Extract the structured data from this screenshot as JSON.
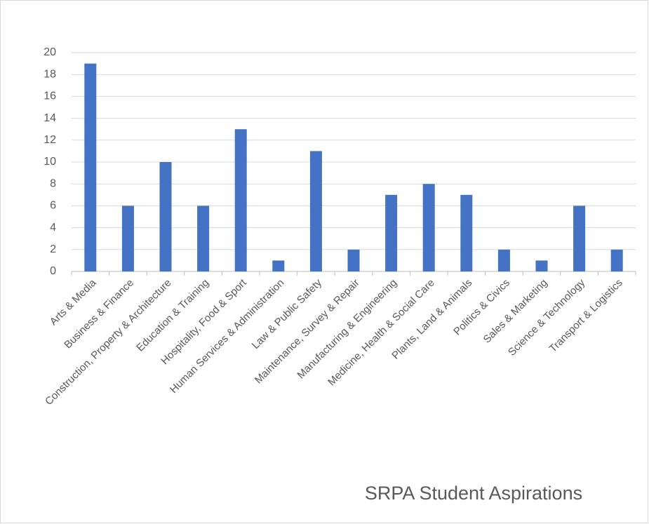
{
  "chart_data": {
    "type": "bar",
    "title": "SRPA Student Aspirations",
    "categories": [
      "Arts & Media",
      "Business & Finance",
      "Construction, Property & Architecture",
      "Education & Training",
      "Hospitality, Food & Sport",
      "Human Services & Administration",
      "Law & Public Safety",
      "Maintenance, Survey & Repair",
      "Manufacturing & Engineering",
      "Medicine, Health & Social Care",
      "Plants, Land & Animals",
      "Politics & Civics",
      "Sales & Marketing",
      "Science & Technology",
      "Transport & Logistics"
    ],
    "values": [
      19,
      6,
      10,
      6,
      13,
      1,
      11,
      2,
      7,
      8,
      7,
      2,
      1,
      6,
      2
    ],
    "color": "#4472c4",
    "ylim": [
      0,
      20
    ],
    "yticks": [
      0,
      2,
      4,
      6,
      8,
      10,
      12,
      14,
      16,
      18,
      20
    ],
    "grid": true
  }
}
